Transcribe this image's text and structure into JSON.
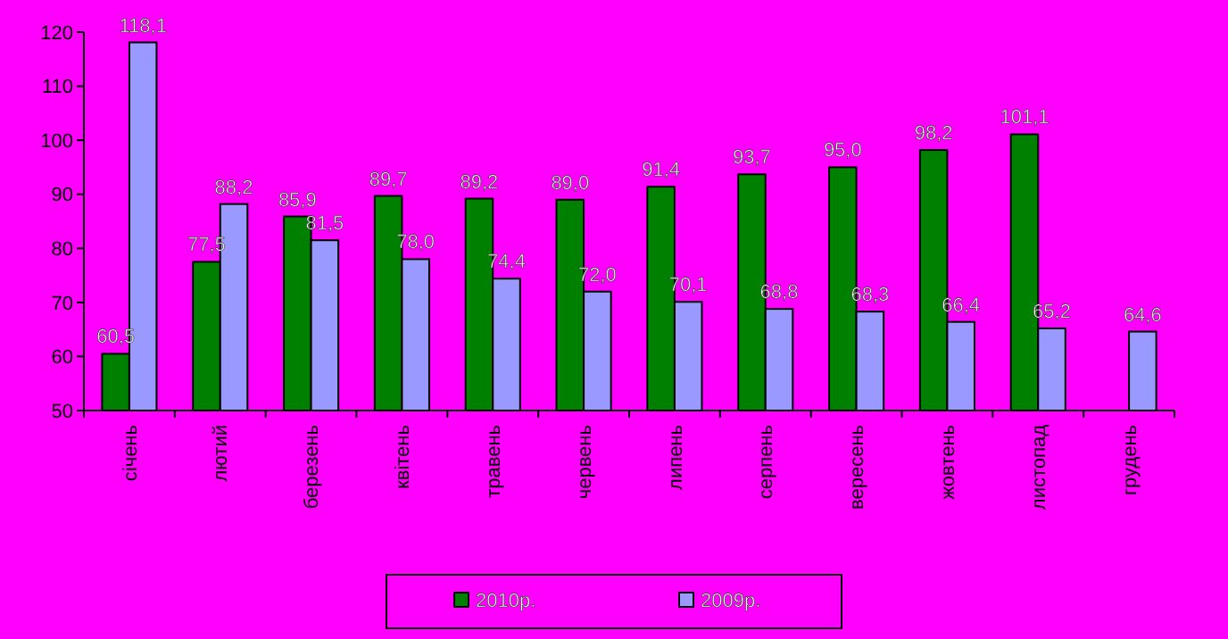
{
  "chart_data": {
    "type": "bar",
    "categories": [
      "січень",
      "лютий",
      "березень",
      "квітень",
      "травень",
      "червень",
      "липень",
      "серпень",
      "вересень",
      "жовтень",
      "листопад",
      "грудень"
    ],
    "series": [
      {
        "name": "2010р.",
        "color": "#008000",
        "values": [
          60.5,
          77.5,
          85.9,
          89.7,
          89.2,
          89.0,
          91.4,
          93.7,
          95.0,
          98.2,
          101.1,
          null
        ],
        "value_labels": [
          "60,5",
          "77,5",
          "85,9",
          "89,7",
          "89,2",
          "89,0",
          "91,4",
          "93,7",
          "95,0",
          "98,2",
          "101,1",
          null
        ]
      },
      {
        "name": "2009р.",
        "color": "#9999ff",
        "values": [
          118.1,
          88.2,
          81.5,
          78.0,
          74.4,
          72.0,
          70.1,
          68.8,
          68.3,
          66.4,
          65.2,
          64.6
        ],
        "value_labels": [
          "118,1",
          "88,2",
          "81,5",
          "78,0",
          "74,4",
          "72,0",
          "70,1",
          "68,8",
          "68,3",
          "66,4",
          "65,2",
          "64,6"
        ]
      }
    ],
    "ylim": [
      50,
      120
    ],
    "yticks": [
      50,
      60,
      70,
      80,
      90,
      100,
      110,
      120
    ],
    "grid": false,
    "legend": "bottom"
  }
}
